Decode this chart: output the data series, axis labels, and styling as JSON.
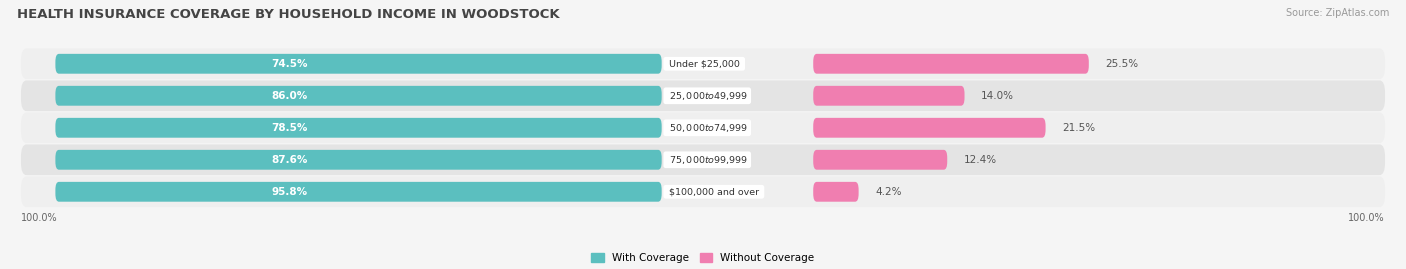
{
  "title": "HEALTH INSURANCE COVERAGE BY HOUSEHOLD INCOME IN WOODSTOCK",
  "source": "Source: ZipAtlas.com",
  "categories": [
    "Under $25,000",
    "$25,000 to $49,999",
    "$50,000 to $74,999",
    "$75,000 to $99,999",
    "$100,000 and over"
  ],
  "with_coverage": [
    74.5,
    86.0,
    78.5,
    87.6,
    95.8
  ],
  "without_coverage": [
    25.5,
    14.0,
    21.5,
    12.4,
    4.2
  ],
  "color_with": "#5BBFBF",
  "color_without": "#F07EB0",
  "row_colors": [
    "#EFEFEF",
    "#E4E4E4"
  ],
  "title_fontsize": 9.5,
  "source_fontsize": 7,
  "bar_height": 0.62,
  "total_width": 100
}
